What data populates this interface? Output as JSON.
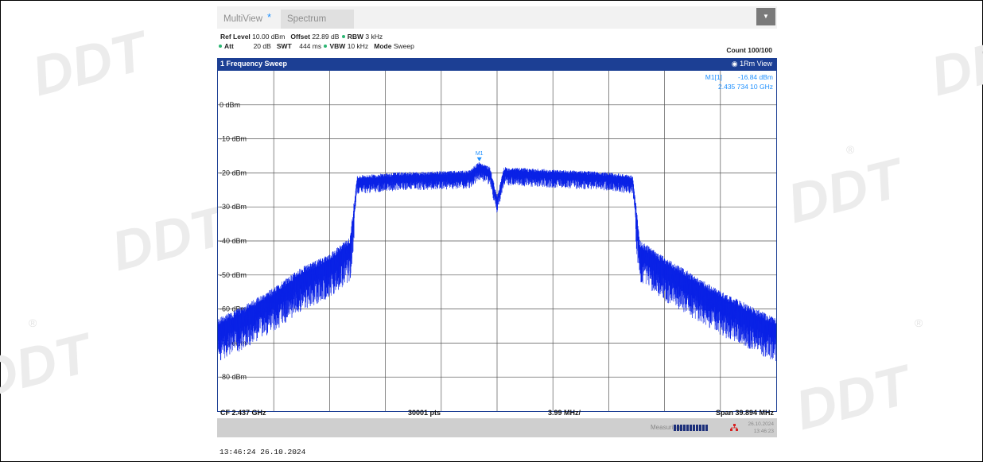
{
  "watermark": "DDT",
  "tabs": [
    "MultiView",
    "Spectrum"
  ],
  "settings": {
    "ref_level_label": "Ref Level",
    "ref_level_value": "10.00 dBm",
    "offset_label": "Offset",
    "offset_value": "22.89 dB",
    "rbw_label": "RBW",
    "rbw_value": "3 kHz",
    "att_label": "Att",
    "att_value": "20 dB",
    "swt_label": "SWT",
    "swt_value": "444 ms",
    "vbw_label": "VBW",
    "vbw_value": "10 kHz",
    "mode_label": "Mode",
    "mode_value": "Sweep",
    "count": "Count 100/100"
  },
  "panel": {
    "title": "1 Frequency Sweep",
    "view": "1Rm View"
  },
  "marker": {
    "label": "M1[1]",
    "level": "-16.84 dBm",
    "freq": "2.435 734 10 GHz",
    "tag": "M1"
  },
  "footer": {
    "cf": "CF 2.437 GHz",
    "pts": "30001 pts",
    "div": "3.99 MHz/",
    "span": "Span 39.894 MHz"
  },
  "status": {
    "text": "Measuring...",
    "date": "26.10.2024",
    "time": "13:46:23"
  },
  "timestamp": "13:46:24  26.10.2024",
  "chart_data": {
    "type": "line",
    "title": "1 Frequency Sweep",
    "xlim": [
      2.417053,
      2.456947
    ],
    "ylim": [
      -90,
      10
    ],
    "yticks": [
      "0 dBm",
      "-10 dBm",
      "-20 dBm",
      "-30 dBm",
      "-40 dBm",
      "-50 dBm",
      "-60 dBm",
      "-70 dBm",
      "-80 dBm"
    ],
    "ytick_values": [
      0,
      -10,
      -20,
      -30,
      -40,
      -50,
      -60,
      -70,
      -80
    ],
    "grid": true,
    "series": [
      {
        "x": [
          2.41705,
          2.419,
          2.421,
          2.423,
          2.425,
          2.4265,
          2.427,
          2.43,
          2.435,
          2.4357,
          2.4365,
          2.437,
          2.4375,
          2.44,
          2.445,
          2.4467,
          2.4472,
          2.449,
          2.451,
          2.453,
          2.455,
          2.45695
        ],
        "y": [
          -65,
          -61,
          -56,
          -50,
          -46,
          -41,
          -22,
          -21,
          -20.5,
          -18,
          -19.5,
          -28,
          -19.5,
          -20,
          -21,
          -22,
          -42,
          -47,
          -52,
          -57,
          -61,
          -65
        ]
      }
    ],
    "marker": {
      "x": 2.4357341,
      "y": -16.84
    },
    "color": "#0a22e6",
    "grid_color": "#555555"
  }
}
